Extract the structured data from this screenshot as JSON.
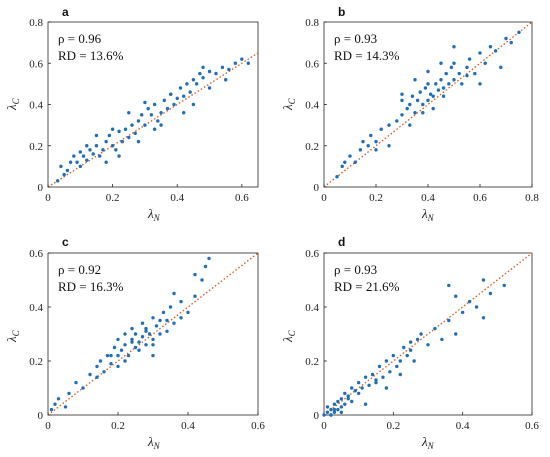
{
  "chart_data": [
    {
      "type": "scatter",
      "panel": "a",
      "stats": [
        "ρ = 0.96",
        "RD = 13.6%"
      ],
      "xlabel": "λN",
      "ylabel": "λC",
      "xlim": [
        0,
        0.65
      ],
      "ylim": [
        0,
        0.8
      ],
      "xticks": [
        0,
        0.2,
        0.4,
        0.6
      ],
      "yticks": [
        0,
        0.2,
        0.4,
        0.6,
        0.8
      ],
      "diagonal": true,
      "x": [
        0.03,
        0.04,
        0.05,
        0.06,
        0.07,
        0.08,
        0.09,
        0.1,
        0.1,
        0.11,
        0.12,
        0.13,
        0.14,
        0.15,
        0.16,
        0.17,
        0.18,
        0.19,
        0.2,
        0.21,
        0.22,
        0.23,
        0.24,
        0.25,
        0.26,
        0.27,
        0.28,
        0.29,
        0.3,
        0.31,
        0.32,
        0.33,
        0.34,
        0.35,
        0.36,
        0.37,
        0.38,
        0.39,
        0.4,
        0.41,
        0.42,
        0.43,
        0.44,
        0.45,
        0.46,
        0.47,
        0.48,
        0.5,
        0.52,
        0.54,
        0.56,
        0.58,
        0.6,
        0.62,
        0.2,
        0.25,
        0.3,
        0.35,
        0.15,
        0.45,
        0.5,
        0.55,
        0.22,
        0.28,
        0.33,
        0.38,
        0.42,
        0.48,
        0.12,
        0.18
      ],
      "y": [
        0.03,
        0.1,
        0.06,
        0.08,
        0.12,
        0.15,
        0.12,
        0.1,
        0.17,
        0.15,
        0.13,
        0.18,
        0.16,
        0.2,
        0.15,
        0.18,
        0.22,
        0.25,
        0.2,
        0.18,
        0.27,
        0.22,
        0.28,
        0.24,
        0.3,
        0.26,
        0.32,
        0.35,
        0.3,
        0.38,
        0.35,
        0.4,
        0.32,
        0.36,
        0.42,
        0.38,
        0.45,
        0.4,
        0.43,
        0.48,
        0.44,
        0.5,
        0.46,
        0.52,
        0.5,
        0.55,
        0.53,
        0.56,
        0.55,
        0.58,
        0.57,
        0.6,
        0.62,
        0.6,
        0.28,
        0.36,
        0.41,
        0.3,
        0.25,
        0.4,
        0.48,
        0.52,
        0.15,
        0.22,
        0.28,
        0.45,
        0.36,
        0.58,
        0.2,
        0.12
      ]
    },
    {
      "type": "scatter",
      "panel": "b",
      "stats": [
        "ρ = 0.93",
        "RD = 14.3%"
      ],
      "xlabel": "λN",
      "ylabel": "λC",
      "xlim": [
        0,
        0.8
      ],
      "ylim": [
        0,
        0.8
      ],
      "xticks": [
        0,
        0.2,
        0.4,
        0.6,
        0.8
      ],
      "yticks": [
        0,
        0.2,
        0.4,
        0.6,
        0.8
      ],
      "diagonal": true,
      "x": [
        0.05,
        0.07,
        0.08,
        0.1,
        0.12,
        0.14,
        0.15,
        0.17,
        0.18,
        0.2,
        0.22,
        0.25,
        0.28,
        0.3,
        0.3,
        0.32,
        0.33,
        0.34,
        0.35,
        0.36,
        0.37,
        0.38,
        0.39,
        0.4,
        0.4,
        0.41,
        0.42,
        0.43,
        0.44,
        0.45,
        0.46,
        0.47,
        0.48,
        0.49,
        0.5,
        0.5,
        0.52,
        0.53,
        0.55,
        0.56,
        0.58,
        0.6,
        0.62,
        0.64,
        0.66,
        0.7,
        0.72,
        0.75,
        0.3,
        0.35,
        0.4,
        0.45,
        0.5,
        0.55,
        0.38,
        0.42,
        0.46,
        0.33,
        0.6,
        0.68,
        0.25,
        0.2
      ],
      "y": [
        0.05,
        0.1,
        0.12,
        0.15,
        0.12,
        0.18,
        0.22,
        0.2,
        0.25,
        0.22,
        0.28,
        0.2,
        0.32,
        0.35,
        0.42,
        0.38,
        0.4,
        0.44,
        0.36,
        0.42,
        0.46,
        0.4,
        0.48,
        0.42,
        0.5,
        0.45,
        0.44,
        0.5,
        0.47,
        0.52,
        0.48,
        0.55,
        0.5,
        0.58,
        0.52,
        0.6,
        0.55,
        0.5,
        0.58,
        0.62,
        0.55,
        0.65,
        0.6,
        0.68,
        0.66,
        0.72,
        0.7,
        0.75,
        0.45,
        0.52,
        0.56,
        0.6,
        0.68,
        0.54,
        0.36,
        0.38,
        0.44,
        0.3,
        0.5,
        0.58,
        0.3,
        0.18
      ]
    },
    {
      "type": "scatter",
      "panel": "c",
      "stats": [
        "ρ = 0.92",
        "RD = 16.3%"
      ],
      "xlabel": "λN",
      "ylabel": "λC",
      "xlim": [
        0,
        0.6
      ],
      "ylim": [
        0,
        0.6
      ],
      "xticks": [
        0,
        0.2,
        0.4,
        0.6
      ],
      "yticks": [
        0,
        0.2,
        0.4,
        0.6
      ],
      "diagonal": true,
      "x": [
        0.01,
        0.02,
        0.03,
        0.05,
        0.06,
        0.08,
        0.1,
        0.12,
        0.14,
        0.15,
        0.16,
        0.17,
        0.18,
        0.19,
        0.2,
        0.2,
        0.21,
        0.22,
        0.22,
        0.23,
        0.24,
        0.24,
        0.25,
        0.25,
        0.26,
        0.27,
        0.27,
        0.28,
        0.28,
        0.29,
        0.3,
        0.3,
        0.31,
        0.32,
        0.33,
        0.34,
        0.35,
        0.36,
        0.38,
        0.4,
        0.42,
        0.44,
        0.46,
        0.22,
        0.26,
        0.3,
        0.34,
        0.38,
        0.18,
        0.24,
        0.28,
        0.32,
        0.36,
        0.42,
        0.45,
        0.14,
        0.2,
        0.3
      ],
      "y": [
        0.02,
        0.04,
        0.06,
        0.03,
        0.08,
        0.12,
        0.1,
        0.15,
        0.18,
        0.2,
        0.16,
        0.22,
        0.19,
        0.25,
        0.22,
        0.28,
        0.24,
        0.26,
        0.3,
        0.22,
        0.28,
        0.32,
        0.25,
        0.3,
        0.27,
        0.29,
        0.34,
        0.26,
        0.32,
        0.3,
        0.28,
        0.36,
        0.33,
        0.3,
        0.38,
        0.35,
        0.4,
        0.34,
        0.42,
        0.38,
        0.44,
        0.5,
        0.58,
        0.2,
        0.24,
        0.26,
        0.31,
        0.36,
        0.22,
        0.27,
        0.31,
        0.35,
        0.45,
        0.52,
        0.55,
        0.14,
        0.18,
        0.22
      ]
    },
    {
      "type": "scatter",
      "panel": "d",
      "stats": [
        "ρ = 0.93",
        "RD = 21.6%"
      ],
      "xlabel": "λN",
      "ylabel": "λC",
      "xlim": [
        0,
        0.6
      ],
      "ylim": [
        0,
        0.6
      ],
      "xticks": [
        0,
        0.2,
        0.4,
        0.6
      ],
      "yticks": [
        0,
        0.2,
        0.4,
        0.6
      ],
      "diagonal": true,
      "x": [
        0.0,
        0.01,
        0.01,
        0.02,
        0.02,
        0.03,
        0.03,
        0.04,
        0.04,
        0.05,
        0.05,
        0.06,
        0.06,
        0.07,
        0.08,
        0.08,
        0.09,
        0.1,
        0.1,
        0.11,
        0.12,
        0.13,
        0.14,
        0.15,
        0.16,
        0.17,
        0.18,
        0.19,
        0.2,
        0.21,
        0.22,
        0.23,
        0.24,
        0.25,
        0.26,
        0.27,
        0.28,
        0.3,
        0.32,
        0.34,
        0.36,
        0.38,
        0.4,
        0.42,
        0.44,
        0.46,
        0.48,
        0.52,
        0.36,
        0.38,
        0.46,
        0.02,
        0.03,
        0.05,
        0.07,
        0.12,
        0.15,
        0.18,
        0.22,
        0.25
      ],
      "y": [
        0.0,
        0.01,
        0.03,
        0.0,
        0.02,
        0.01,
        0.04,
        0.02,
        0.05,
        0.03,
        0.06,
        0.08,
        0.04,
        0.07,
        0.1,
        0.05,
        0.09,
        0.12,
        0.08,
        0.1,
        0.14,
        0.11,
        0.15,
        0.12,
        0.18,
        0.14,
        0.2,
        0.16,
        0.22,
        0.18,
        0.2,
        0.25,
        0.22,
        0.27,
        0.2,
        0.28,
        0.3,
        0.26,
        0.32,
        0.28,
        0.35,
        0.3,
        0.38,
        0.42,
        0.4,
        0.36,
        0.45,
        0.48,
        0.48,
        0.44,
        0.5,
        0.0,
        0.02,
        0.01,
        0.06,
        0.04,
        0.13,
        0.1,
        0.15,
        0.24
      ]
    }
  ]
}
